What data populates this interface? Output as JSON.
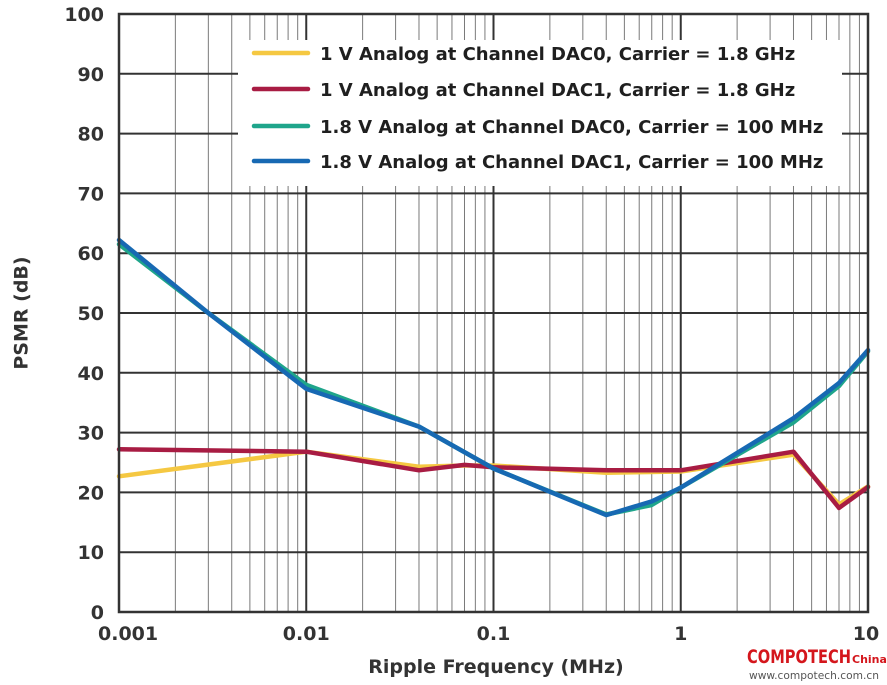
{
  "chart_data": {
    "type": "line",
    "x_scale": "log",
    "xlabel": "Ripple Frequency (MHz)",
    "ylabel": "PSMR (dB)",
    "xlim": [
      0.001,
      10
    ],
    "ylim": [
      0,
      100
    ],
    "x_ticks": [
      "0.001",
      "0.01",
      "0.1",
      "1",
      "10"
    ],
    "y_ticks": [
      "0",
      "10",
      "20",
      "30",
      "40",
      "50",
      "60",
      "70",
      "80",
      "90",
      "100"
    ],
    "grid": true,
    "legend_position": "top-right",
    "series": [
      {
        "name": "1 V Analog at Channel DAC0, Carrier = 1.8 GHz",
        "color": "#f5c842",
        "x": [
          0.001,
          0.01,
          0.04,
          0.07,
          0.1,
          0.4,
          1,
          4,
          7,
          10
        ],
        "y": [
          22.7,
          26.8,
          24.3,
          24.5,
          24.5,
          23.3,
          23.5,
          26.3,
          18,
          21
        ]
      },
      {
        "name": "1 V Analog at Channel DAC1, Carrier = 1.8 GHz",
        "color": "#a81c43",
        "x": [
          0.001,
          0.01,
          0.04,
          0.07,
          0.1,
          0.4,
          1,
          4,
          7,
          10
        ],
        "y": [
          27.2,
          26.8,
          23.7,
          24.6,
          24.2,
          23.7,
          23.7,
          26.8,
          17.4,
          20.9
        ]
      },
      {
        "name": "1.8 V Analog at Channel DAC0, Carrier = 100 MHz",
        "color": "#1fa58b",
        "x": [
          0.001,
          0.003,
          0.01,
          0.04,
          0.1,
          0.4,
          0.7,
          1,
          4,
          7,
          10
        ],
        "y": [
          61.5,
          50,
          38,
          31,
          24,
          16.3,
          17.9,
          20.8,
          31.7,
          37.8,
          43.6
        ]
      },
      {
        "name": "1.8 V Analog at Channel DAC1, Carrier = 100 MHz",
        "color": "#1769b3",
        "x": [
          0.001,
          0.003,
          0.01,
          0.04,
          0.1,
          0.4,
          0.7,
          1,
          4,
          7,
          10
        ],
        "y": [
          62.2,
          50,
          37.3,
          31,
          24,
          16.2,
          18.5,
          20.8,
          32.4,
          38.3,
          43.8
        ]
      }
    ]
  },
  "watermark": {
    "brand": "COMPOTECH",
    "brand_suffix": "China",
    "url": "www.compotech.com.cn",
    "color": "#d4161c"
  }
}
